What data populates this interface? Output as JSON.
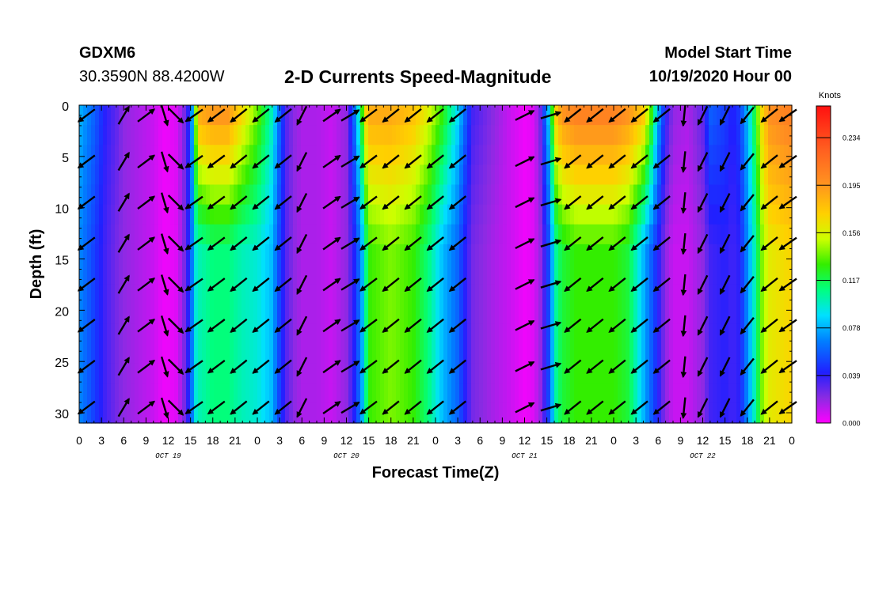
{
  "header": {
    "station": "GDXM6",
    "coords": "30.3590N 88.4200W",
    "title": "2-D Currents Speed-Magnitude",
    "model_start_label": "Model Start Time",
    "model_start_value": "10/19/2020 Hour 00"
  },
  "chart_data": {
    "type": "heatmap",
    "title": "2-D Currents Speed-Magnitude",
    "xlabel": "Forecast Time(Z)",
    "ylabel": "Depth (ft)",
    "x_range_hours": [
      0,
      96
    ],
    "y_range_ft": [
      0,
      31
    ],
    "x_tick_labels": [
      "0",
      "3",
      "6",
      "9",
      "12",
      "15",
      "18",
      "21",
      "0",
      "3",
      "6",
      "9",
      "12",
      "15",
      "18",
      "21",
      "0",
      "3",
      "6",
      "9",
      "12",
      "15",
      "18",
      "21",
      "0",
      "3",
      "6",
      "9",
      "12",
      "15",
      "18",
      "21",
      "0"
    ],
    "y_ticks": [
      0,
      5,
      10,
      15,
      20,
      25,
      30
    ],
    "day_labels": [
      {
        "label": "OCT 19",
        "hour": 12
      },
      {
        "label": "OCT 20",
        "hour": 36
      },
      {
        "label": "OCT 21",
        "hour": 60
      },
      {
        "label": "OCT 22",
        "hour": 84
      }
    ],
    "colorbar": {
      "unit": "Knots",
      "min": 0.0,
      "max": 0.26,
      "tick_labels": [
        "0.234",
        "0.195",
        "0.156",
        "0.117",
        "0.078",
        "0.039",
        "0.000"
      ],
      "tick_values": [
        0.234,
        0.195,
        0.156,
        0.117,
        0.078,
        0.039,
        0.0
      ]
    },
    "speed_profile_hours": [
      0,
      2,
      3.5,
      5,
      6,
      8,
      10,
      11,
      11.5,
      13,
      14,
      15,
      15.5,
      16,
      18,
      20,
      22,
      24,
      26,
      27,
      28,
      29,
      30,
      32,
      34,
      36,
      37,
      38,
      38.5,
      39,
      42,
      45,
      47,
      49,
      51,
      52,
      53,
      56,
      58,
      60,
      61,
      62,
      63.5,
      64,
      65,
      67,
      69,
      72,
      74,
      75,
      76,
      77,
      78,
      79,
      80,
      82,
      84,
      85,
      87,
      88,
      89,
      90,
      91,
      92,
      93,
      96
    ],
    "speed_surface": [
      0.08,
      0.06,
      0.04,
      0.03,
      0.02,
      0.015,
      0.01,
      0.005,
      0.003,
      0.006,
      0.02,
      0.05,
      0.11,
      0.19,
      0.2,
      0.2,
      0.17,
      0.14,
      0.1,
      0.06,
      0.03,
      0.02,
      0.015,
      0.015,
      0.01,
      0.02,
      0.06,
      0.12,
      0.17,
      0.19,
      0.19,
      0.18,
      0.16,
      0.13,
      0.09,
      0.06,
      0.035,
      0.02,
      0.01,
      0.003,
      0.005,
      0.02,
      0.1,
      0.17,
      0.2,
      0.21,
      0.21,
      0.21,
      0.2,
      0.19,
      0.18,
      0.14,
      0.08,
      0.04,
      0.02,
      0.015,
      0.03,
      0.06,
      0.05,
      0.04,
      0.05,
      0.08,
      0.12,
      0.17,
      0.2,
      0.21
    ],
    "speed_bottom": [
      0.07,
      0.05,
      0.035,
      0.025,
      0.02,
      0.015,
      0.01,
      0.005,
      0.003,
      0.005,
      0.02,
      0.05,
      0.09,
      0.1,
      0.11,
      0.11,
      0.1,
      0.095,
      0.08,
      0.05,
      0.03,
      0.02,
      0.015,
      0.015,
      0.01,
      0.02,
      0.04,
      0.07,
      0.1,
      0.13,
      0.14,
      0.13,
      0.11,
      0.08,
      0.06,
      0.04,
      0.025,
      0.015,
      0.01,
      0.003,
      0.005,
      0.015,
      0.06,
      0.1,
      0.12,
      0.13,
      0.13,
      0.13,
      0.12,
      0.1,
      0.08,
      0.06,
      0.04,
      0.02,
      0.01,
      0.01,
      0.02,
      0.035,
      0.04,
      0.035,
      0.04,
      0.07,
      0.1,
      0.14,
      0.16,
      0.17
    ],
    "vector_depths_ft": [
      1,
      5.5,
      9.5,
      13.5,
      17.5,
      21.5,
      25.5,
      29.5
    ],
    "vectors": [
      {
        "hour": 1,
        "dx": -1,
        "dy": 0.75
      },
      {
        "hour": 6,
        "dx": 0.6,
        "dy": -1
      },
      {
        "hour": 9,
        "dx": 1,
        "dy": -0.75
      },
      {
        "hour": 11.5,
        "dx": 0.3,
        "dy": 1
      },
      {
        "hour": 13,
        "dx": 1,
        "dy": 1
      },
      {
        "hour": 15.5,
        "dx": -1,
        "dy": 0.7
      },
      {
        "hour": 18.5,
        "dx": -1,
        "dy": 0.75
      },
      {
        "hour": 21.5,
        "dx": -1,
        "dy": 0.8
      },
      {
        "hour": 24.5,
        "dx": -1,
        "dy": 0.8
      },
      {
        "hour": 27.5,
        "dx": -1,
        "dy": 0.8
      },
      {
        "hour": 30,
        "dx": -0.5,
        "dy": 1
      },
      {
        "hour": 34,
        "dx": 1,
        "dy": -0.7
      },
      {
        "hour": 36.5,
        "dx": 1,
        "dy": -0.6
      },
      {
        "hour": 39,
        "dx": -1,
        "dy": 0.75
      },
      {
        "hour": 42,
        "dx": -1,
        "dy": 0.8
      },
      {
        "hour": 45,
        "dx": -1,
        "dy": 0.8
      },
      {
        "hour": 48,
        "dx": -1,
        "dy": 0.8
      },
      {
        "hour": 51,
        "dx": -1,
        "dy": 0.8
      },
      {
        "hour": 60,
        "dx": 1,
        "dy": -0.5
      },
      {
        "hour": 63.5,
        "dx": 1,
        "dy": -0.3
      },
      {
        "hour": 66.5,
        "dx": -1,
        "dy": 0.8
      },
      {
        "hour": 69.5,
        "dx": -1,
        "dy": 0.8
      },
      {
        "hour": 72.5,
        "dx": -1,
        "dy": 0.8
      },
      {
        "hour": 75.5,
        "dx": -1,
        "dy": 0.8
      },
      {
        "hour": 78.5,
        "dx": -1,
        "dy": 0.8
      },
      {
        "hour": 81.5,
        "dx": -0.1,
        "dy": 1
      },
      {
        "hour": 84,
        "dx": -0.5,
        "dy": 1
      },
      {
        "hour": 87,
        "dx": -0.5,
        "dy": 1
      },
      {
        "hour": 90,
        "dx": -0.8,
        "dy": 1
      },
      {
        "hour": 93,
        "dx": -1,
        "dy": 0.8
      },
      {
        "hour": 95.5,
        "dx": -1,
        "dy": 0.7
      }
    ],
    "grid": false
  }
}
